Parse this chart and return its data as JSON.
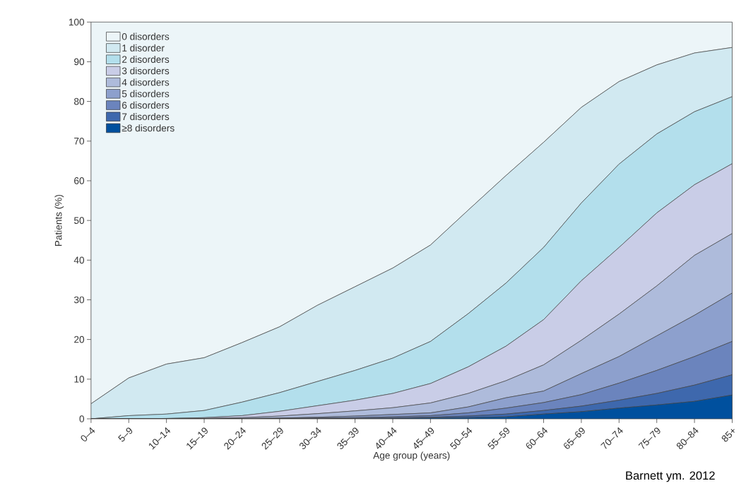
{
  "chart_data": {
    "type": "area",
    "stacked": true,
    "xlabel": "Age group (years)",
    "ylabel": "Patients (%)",
    "categories": [
      "0–4",
      "5–9",
      "10–14",
      "15–19",
      "20–24",
      "25–29",
      "30–34",
      "35–39",
      "40–44",
      "45–49",
      "50–54",
      "55–59",
      "60–64",
      "65–69",
      "70–74",
      "75–79",
      "80–84",
      "85+"
    ],
    "series": [
      {
        "name": "≥8 disorders",
        "color": "#00509e",
        "values": [
          0,
          0,
          0,
          0,
          0,
          0,
          0,
          0,
          0.1,
          0.2,
          0.3,
          0.5,
          1.2,
          1.8,
          2.7,
          3.5,
          4.4,
          6.0
        ]
      },
      {
        "name": "7 disorders",
        "color": "#3e68ad",
        "values": [
          0,
          0,
          0,
          0,
          0,
          0,
          0.1,
          0.1,
          0.1,
          0.2,
          0.4,
          0.7,
          0.9,
          1.4,
          2.0,
          2.9,
          4.1,
          5.1
        ]
      },
      {
        "name": "6 disorders",
        "color": "#6b84bd",
        "values": [
          0,
          0,
          0,
          0,
          0,
          0.1,
          0.1,
          0.2,
          0.3,
          0.4,
          0.8,
          1.5,
          2.0,
          2.9,
          4.3,
          5.8,
          7.2,
          8.4
        ]
      },
      {
        "name": "5 disorders",
        "color": "#8da0cd",
        "values": [
          0,
          0,
          0,
          0,
          0.1,
          0.1,
          0.2,
          0.4,
          0.6,
          0.7,
          1.5,
          2.6,
          2.9,
          5.3,
          6.7,
          8.7,
          10.4,
          12.2
        ]
      },
      {
        "name": "4 disorders",
        "color": "#aebbdb",
        "values": [
          0,
          0,
          0,
          0.1,
          0.2,
          0.5,
          0.9,
          1.3,
          1.7,
          2.5,
          3.4,
          4.3,
          6.6,
          8.4,
          10.7,
          12.6,
          15.1,
          15.0
        ]
      },
      {
        "name": "3 disorders",
        "color": "#c9cde7",
        "values": [
          0,
          0,
          0.1,
          0.2,
          0.5,
          1.2,
          2.0,
          2.7,
          3.6,
          4.9,
          6.7,
          8.7,
          11.4,
          15.0,
          16.8,
          18.4,
          17.8,
          17.6
        ]
      },
      {
        "name": "2 disorders",
        "color": "#b3dfec",
        "values": [
          0,
          0.8,
          1.1,
          1.8,
          3.4,
          4.7,
          6.1,
          7.5,
          8.9,
          10.6,
          13.4,
          15.9,
          18.2,
          19.6,
          21.0,
          19.9,
          18.4,
          16.9
        ]
      },
      {
        "name": "1 disorder",
        "color": "#d1e9f1",
        "values": [
          3.8,
          9.5,
          12.6,
          13.3,
          15.0,
          16.6,
          19.2,
          21.1,
          22.7,
          24.3,
          26.1,
          27.1,
          26.5,
          24.1,
          20.8,
          17.4,
          14.8,
          12.4
        ]
      },
      {
        "name": "0 disorders",
        "color": "#ecf5f8",
        "values": [
          96.2,
          89.7,
          86.2,
          84.6,
          80.8,
          76.8,
          71.4,
          66.7,
          62.0,
          56.2,
          47.4,
          38.7,
          30.3,
          21.5,
          15.0,
          10.8,
          7.8,
          6.4
        ]
      }
    ],
    "ylim": [
      0,
      100
    ],
    "yticks": [
      0,
      10,
      20,
      30,
      40,
      50,
      60,
      70,
      80,
      90,
      100
    ],
    "legend": "top left",
    "annotations": [
      "Barnett ym. 2012"
    ]
  }
}
